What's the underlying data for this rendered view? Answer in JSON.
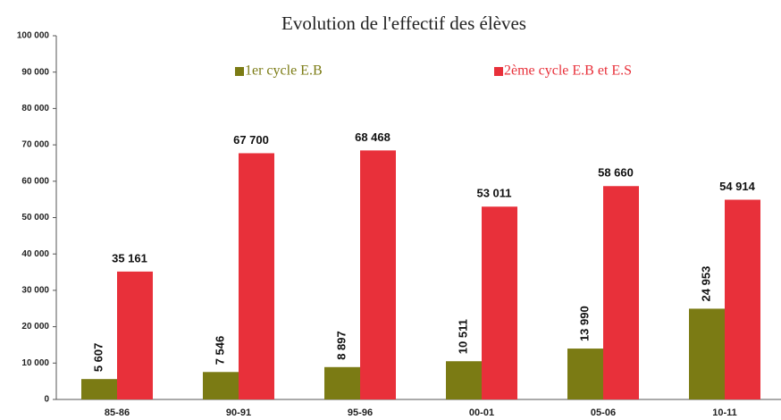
{
  "chart_data": {
    "type": "bar",
    "title": "Evolution de l'effectif des élèves",
    "categories": [
      "85-86",
      "90-91",
      "95-96",
      "00-01",
      "05-06",
      "10-11"
    ],
    "series": [
      {
        "name": "1er cycle E.B",
        "color": "#7b7b14",
        "values": [
          5607,
          7546,
          8897,
          10511,
          13990,
          24953
        ],
        "value_labels": [
          "5 607",
          "7 546",
          "8 897",
          "10 511",
          "13 990",
          "24 953"
        ]
      },
      {
        "name": "2ème cycle E.B et E.S",
        "color": "#e8303a",
        "values": [
          35161,
          67700,
          68468,
          53011,
          58660,
          54914
        ],
        "value_labels": [
          "35 161",
          "67 700",
          "68 468",
          "53 011",
          "58 660",
          "54 914"
        ]
      }
    ],
    "ylim": [
      0,
      100000
    ],
    "yticks": [
      0,
      {
        "value": 10000,
        "label": "10 000"
      },
      {
        "value": 20000,
        "label": "20 000"
      },
      {
        "value": 30000,
        "label": "30 000"
      },
      {
        "value": 40000,
        "label": "40 000"
      },
      {
        "value": 50000,
        "label": "50 000"
      },
      {
        "value": 60000,
        "label": "60 000"
      },
      {
        "value": 70000,
        "label": "70 000"
      },
      {
        "value": 80000,
        "label": "80 000"
      },
      {
        "value": 90000,
        "label": "90 000"
      },
      {
        "value": 100000,
        "label": "100 000"
      }
    ]
  }
}
